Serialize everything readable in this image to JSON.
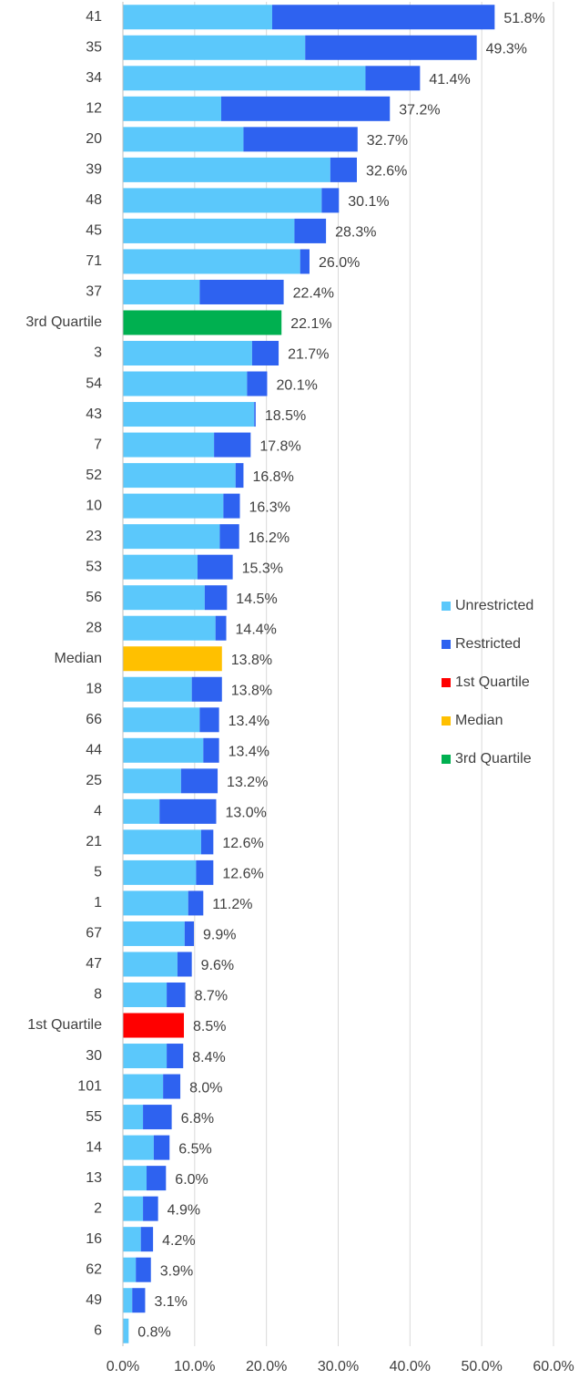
{
  "chart_data": {
    "type": "stacked-barh",
    "categories": [
      "41",
      "35",
      "34",
      "12",
      "20",
      "39",
      "48",
      "45",
      "71",
      "37",
      "3rd Quartile",
      "3",
      "54",
      "43",
      "7",
      "52",
      "10",
      "23",
      "53",
      "56",
      "28",
      "Median",
      "18",
      "66",
      "44",
      "25",
      "4",
      "21",
      "5",
      "1",
      "67",
      "47",
      "8",
      "1st Quartile",
      "30",
      "101",
      "55",
      "14",
      "13",
      "2",
      "16",
      "62",
      "49",
      "6"
    ],
    "series": [
      {
        "name": "Unrestricted",
        "color": "#5bc8fb",
        "values": [
          20.8,
          25.4,
          33.8,
          13.7,
          16.8,
          28.9,
          27.7,
          23.9,
          24.7,
          10.7,
          null,
          18.0,
          17.3,
          18.3,
          12.7,
          15.7,
          14.0,
          13.5,
          10.4,
          11.4,
          12.9,
          null,
          9.6,
          10.7,
          11.2,
          8.1,
          5.1,
          10.9,
          10.2,
          9.1,
          8.6,
          7.6,
          6.1,
          null,
          6.1,
          5.6,
          2.8,
          4.3,
          3.3,
          2.8,
          2.5,
          1.8,
          1.3,
          0.8
        ]
      },
      {
        "name": "Restricted",
        "color": "#2e62f0",
        "values": [
          31.0,
          23.9,
          7.6,
          23.5,
          15.9,
          3.7,
          2.4,
          4.4,
          1.3,
          11.7,
          null,
          3.7,
          2.8,
          0.2,
          5.1,
          1.1,
          2.3,
          2.7,
          4.9,
          3.1,
          1.5,
          null,
          4.2,
          2.7,
          2.2,
          5.1,
          7.9,
          1.7,
          2.4,
          2.1,
          1.3,
          2.0,
          2.6,
          null,
          2.3,
          2.4,
          4.0,
          2.2,
          2.7,
          2.1,
          1.7,
          2.1,
          1.8,
          null
        ]
      },
      {
        "name": "1st Quartile",
        "color": "#ff0000",
        "values": [
          null,
          null,
          null,
          null,
          null,
          null,
          null,
          null,
          null,
          null,
          null,
          null,
          null,
          null,
          null,
          null,
          null,
          null,
          null,
          null,
          null,
          null,
          null,
          null,
          null,
          null,
          null,
          null,
          null,
          null,
          null,
          null,
          null,
          8.5,
          null,
          null,
          null,
          null,
          null,
          null,
          null,
          null,
          null,
          null
        ]
      },
      {
        "name": "Median",
        "color": "#ffc000",
        "values": [
          null,
          null,
          null,
          null,
          null,
          null,
          null,
          null,
          null,
          null,
          null,
          null,
          null,
          null,
          null,
          null,
          null,
          null,
          null,
          null,
          null,
          13.8,
          null,
          null,
          null,
          null,
          null,
          null,
          null,
          null,
          null,
          null,
          null,
          null,
          null,
          null,
          null,
          null,
          null,
          null,
          null,
          null,
          null,
          null
        ]
      },
      {
        "name": "3rd Quartile",
        "color": "#00b050",
        "values": [
          null,
          null,
          null,
          null,
          null,
          null,
          null,
          null,
          null,
          null,
          22.1,
          null,
          null,
          null,
          null,
          null,
          null,
          null,
          null,
          null,
          null,
          null,
          null,
          null,
          null,
          null,
          null,
          null,
          null,
          null,
          null,
          null,
          null,
          null,
          null,
          null,
          null,
          null,
          null,
          null,
          null,
          null,
          null,
          null
        ]
      }
    ],
    "value_labels": [
      "51.8%",
      "49.3%",
      "41.4%",
      "37.2%",
      "32.7%",
      "32.6%",
      "30.1%",
      "28.3%",
      "26.0%",
      "22.4%",
      "22.1%",
      "21.7%",
      "20.1%",
      "18.5%",
      "17.8%",
      "16.8%",
      "16.3%",
      "16.2%",
      "15.3%",
      "14.5%",
      "14.4%",
      "13.8%",
      "13.8%",
      "13.4%",
      "13.4%",
      "13.2%",
      "13.0%",
      "12.6%",
      "12.6%",
      "11.2%",
      "9.9%",
      "9.6%",
      "8.7%",
      "8.5%",
      "8.4%",
      "8.0%",
      "6.8%",
      "6.5%",
      "6.0%",
      "4.9%",
      "4.2%",
      "3.9%",
      "3.1%",
      "0.8%"
    ],
    "xlim": [
      0,
      60
    ],
    "xticks": [
      {
        "value": 0,
        "label": "0.0%"
      },
      {
        "value": 10,
        "label": "10.0%"
      },
      {
        "value": 20,
        "label": "20.0%"
      },
      {
        "value": 30,
        "label": "30.0%"
      },
      {
        "value": 40,
        "label": "40.0%"
      },
      {
        "value": 50,
        "label": "50.0%"
      },
      {
        "value": 60,
        "label": "60.0%"
      }
    ],
    "grid": true,
    "legend": "right"
  }
}
